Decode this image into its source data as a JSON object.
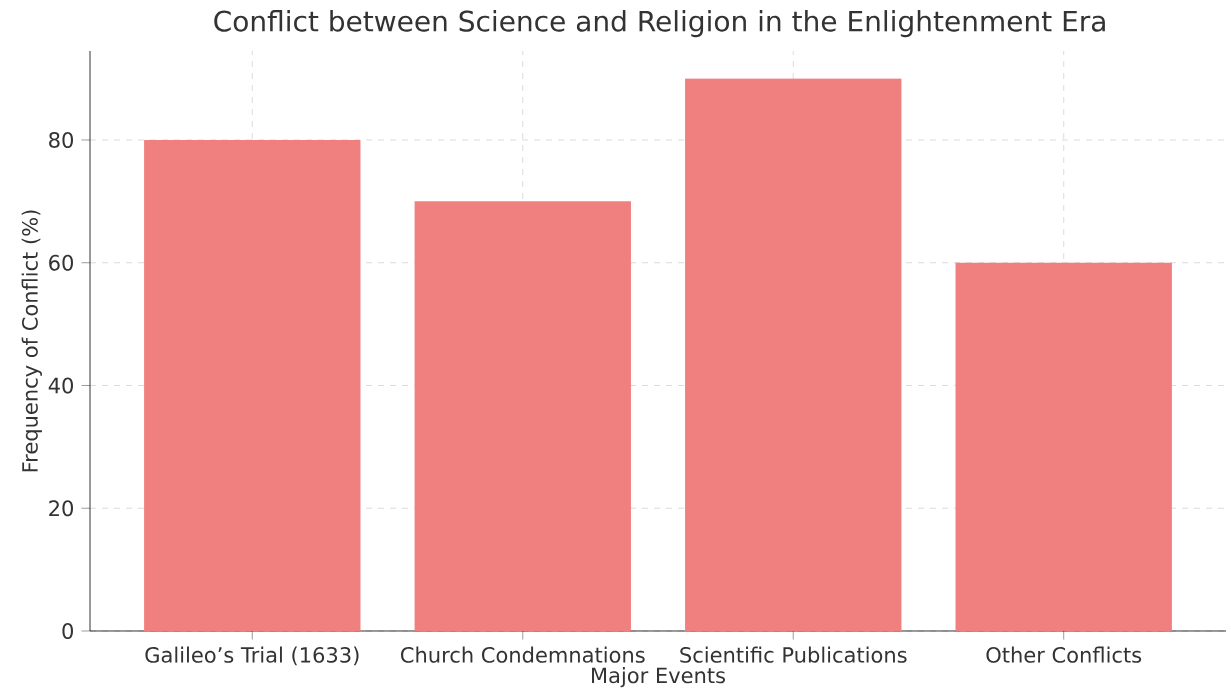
{
  "chart_data": {
    "type": "bar",
    "title": "Conflict between Science and Religion in the Enlightenment Era",
    "xlabel": "Major Events",
    "ylabel": "Frequency of Conflict (%)",
    "categories": [
      "Galileo’s Trial (1633)",
      "Church Condemnations",
      "Scientific Publications",
      "Other Conflicts"
    ],
    "values": [
      80,
      70,
      90,
      60
    ],
    "color": "#f08080",
    "ylim": [
      0,
      94.5
    ],
    "yticks": [
      0,
      20,
      40,
      60,
      80
    ],
    "grid": true
  }
}
